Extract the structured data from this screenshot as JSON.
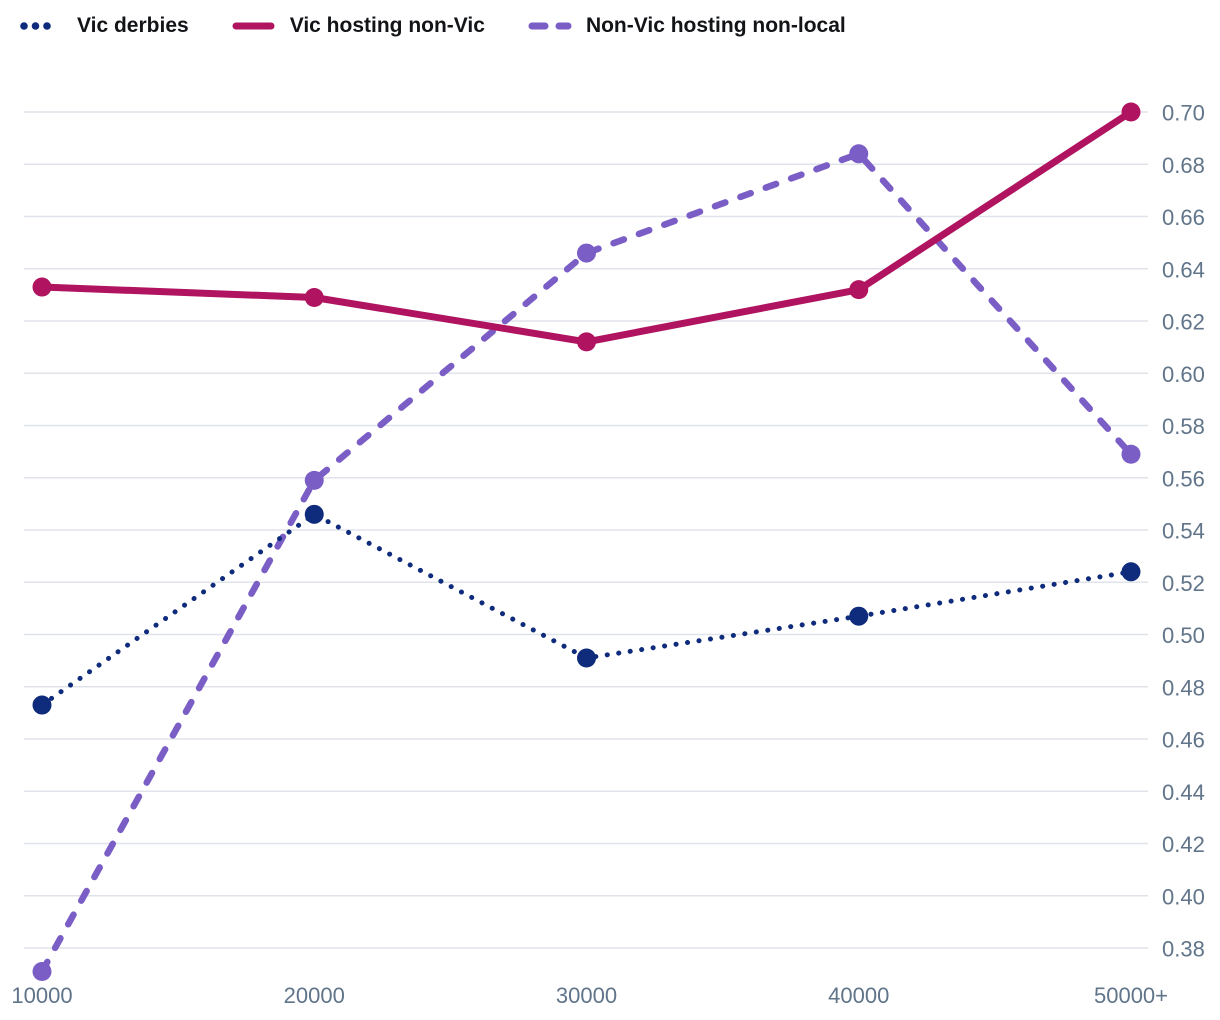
{
  "legend": {
    "items": [
      {
        "label": "Vic derbies",
        "color": "#0F2B7B",
        "style": "dotted"
      },
      {
        "label": "Vic hosting non-Vic",
        "color": "#B0135F",
        "style": "solid"
      },
      {
        "label": "Non-Vic hosting non-local",
        "color": "#7A5EC6",
        "style": "dashed"
      }
    ]
  },
  "chart_data": {
    "type": "line",
    "categories": [
      "10000",
      "20000",
      "30000",
      "40000",
      "50000+"
    ],
    "series": [
      {
        "name": "Vic derbies",
        "color": "#0F2B7B",
        "line_style": "dotted",
        "values": [
          0.473,
          0.546,
          0.491,
          0.507,
          0.524
        ]
      },
      {
        "name": "Vic hosting non-Vic",
        "color": "#B0135F",
        "line_style": "solid",
        "values": [
          0.633,
          0.629,
          0.612,
          0.632,
          0.7
        ]
      },
      {
        "name": "Non-Vic hosting non-local",
        "color": "#7A5EC6",
        "line_style": "dashed",
        "values": [
          0.371,
          0.559,
          0.646,
          0.684,
          0.569
        ]
      }
    ],
    "title": "",
    "xlabel": "",
    "ylabel": "",
    "ylim": [
      0.37,
      0.705
    ],
    "y_ticks": [
      "0.70",
      "0.68",
      "0.66",
      "0.64",
      "0.62",
      "0.60",
      "0.58",
      "0.56",
      "0.54",
      "0.52",
      "0.50",
      "0.48",
      "0.46",
      "0.44",
      "0.42",
      "0.40",
      "0.38"
    ],
    "grid": "horizontal",
    "legend_position": "top-left",
    "y_axis_side": "right",
    "colors": {
      "grid": "#E0E3EA",
      "tick_label": "#60748A",
      "legend_text": "#121417",
      "background": "#FFFFFF"
    }
  }
}
